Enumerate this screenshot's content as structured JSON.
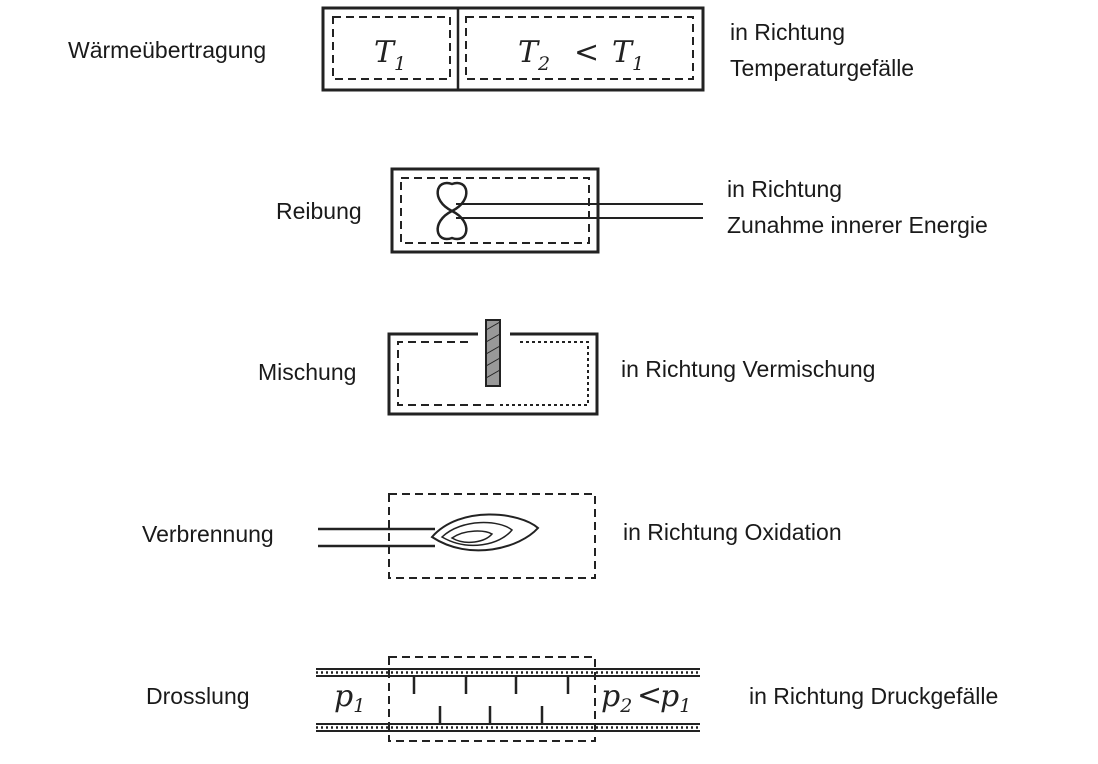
{
  "rows": [
    {
      "label": "Wärmeübertragung",
      "desc_line1": "in Richtung",
      "desc_line2": "Temperaturgefälle",
      "symbols": {
        "left": "T",
        "left_sub": "1",
        "right_a": "T",
        "right_a_sub": "2",
        "relation": "<",
        "right_b": "T",
        "right_b_sub": "1"
      }
    },
    {
      "label": "Reibung",
      "desc_line1": "in Richtung",
      "desc_line2": "Zunahme innerer Energie"
    },
    {
      "label": "Mischung",
      "desc_line1": "in Richtung Vermischung"
    },
    {
      "label": "Verbrennung",
      "desc_line1": "in Richtung Oxidation"
    },
    {
      "label": "Drosslung",
      "desc_line1": "in Richtung Druckgefälle",
      "symbols": {
        "left": "p",
        "left_sub": "1",
        "right_a": "p",
        "right_a_sub": "2",
        "relation": "<",
        "right_b": "p",
        "right_b_sub": "1"
      }
    }
  ]
}
